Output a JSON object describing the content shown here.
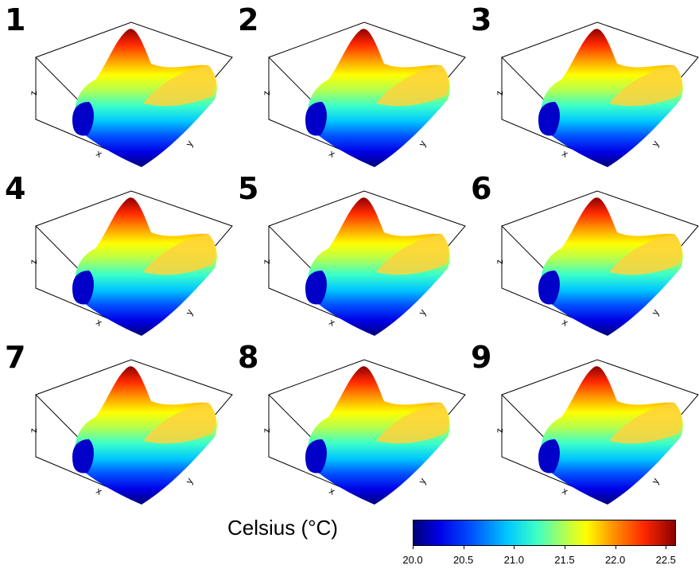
{
  "panels": [
    {
      "label": "1"
    },
    {
      "label": "2"
    },
    {
      "label": "3"
    },
    {
      "label": "4"
    },
    {
      "label": "5"
    },
    {
      "label": "6"
    },
    {
      "label": "7"
    },
    {
      "label": "8"
    },
    {
      "label": "9"
    }
  ],
  "axis_labels": {
    "x": "x",
    "y": "y",
    "z": "z"
  },
  "legend": {
    "title": "Celsius (°C)",
    "ticks": [
      "20.0",
      "20.5",
      "21.0",
      "21.5",
      "22.0",
      "22.5"
    ]
  },
  "colors": {
    "colormap": [
      "#00007a",
      "#0000e6",
      "#0050ff",
      "#00c8ff",
      "#3cffc8",
      "#b4ff50",
      "#ffff00",
      "#ff9600",
      "#ff2800",
      "#8c0000"
    ]
  },
  "chart_data": {
    "type": "heatmap",
    "subtype": "3d-surface small multiples",
    "panels": [
      "1",
      "2",
      "3",
      "4",
      "5",
      "6",
      "7",
      "8",
      "9"
    ],
    "axes": [
      "x",
      "y",
      "z"
    ],
    "colorbar": {
      "title": "Celsius (°C)",
      "range": [
        20.0,
        22.6
      ],
      "ticks": [
        20.0,
        20.5,
        21.0,
        21.5,
        22.0,
        22.5
      ]
    }
  }
}
